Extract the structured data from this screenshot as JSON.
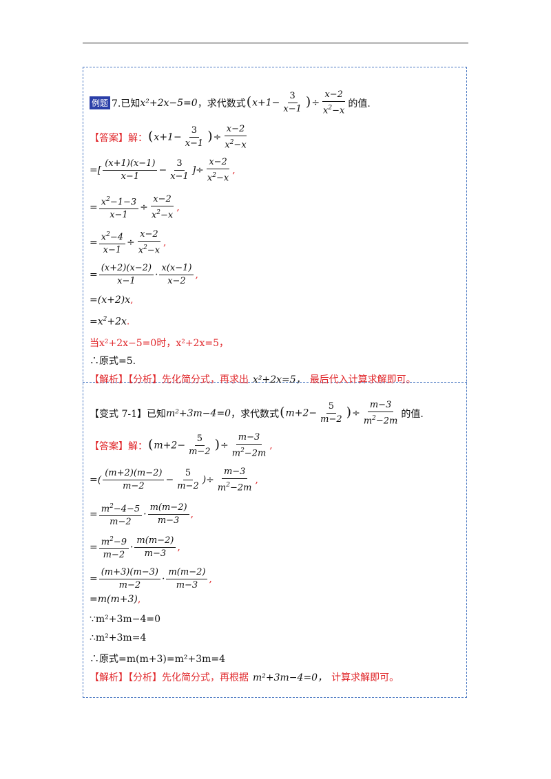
{
  "ex7": {
    "tag": "例题",
    "question_prefix": "7.已知",
    "question_cond": "x²+2x−5=0",
    "question_mid": "，求代数式",
    "question_suffix": "的值.",
    "answer_label": "【答案】解：",
    "when_line": "当x²+2x−5=0时，x²+2x=5，",
    "therefore_line": "∴原式=5.",
    "analysis_label": "【解析】【分析】先化简分式，再求出",
    "analysis_expr": "x²+2x=5，",
    "analysis_suffix": "最后代入计算求解即可。"
  },
  "var71": {
    "label": "【变式 7-1】已知",
    "cond": "m²+3m−4=0",
    "mid": "，求代数式",
    "suffix": "的值.",
    "answer_label": "【答案】解：",
    "because_line": "∵m²+3m−4=0",
    "therefore1": "∴m²+3m=4",
    "therefore2": "∴原式=m(m+3)=m²+3m=4",
    "analysis_label": "【解析】【分析】先化简分式，再根据",
    "analysis_expr": "m²+3m−4=0，",
    "analysis_suffix": "计算求解即可。"
  }
}
